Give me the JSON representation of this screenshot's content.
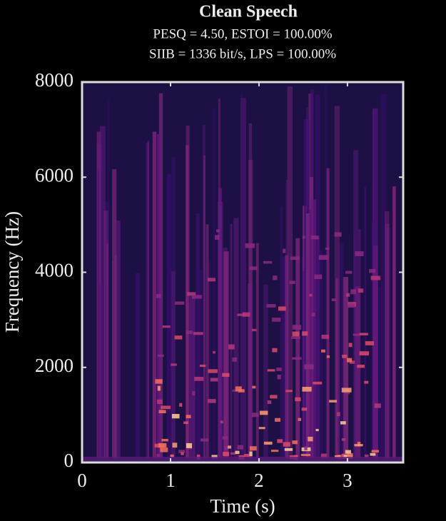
{
  "chart_data": {
    "type": "spectrogram",
    "title": "Clean Speech",
    "subtitle": [
      "PESQ = 4.50, ESTOI = 100.00%",
      "SIIB = 1336 bit/s, LPS = 100.00%"
    ],
    "x_label": "Time (s)",
    "y_label": "Frequency (Hz)",
    "xlim": [
      0,
      3.63
    ],
    "xticks": [
      0,
      1,
      2,
      3
    ],
    "ylim": [
      0,
      8000
    ],
    "yticks": [
      0,
      2000,
      4000,
      6000,
      8000
    ]
  }
}
